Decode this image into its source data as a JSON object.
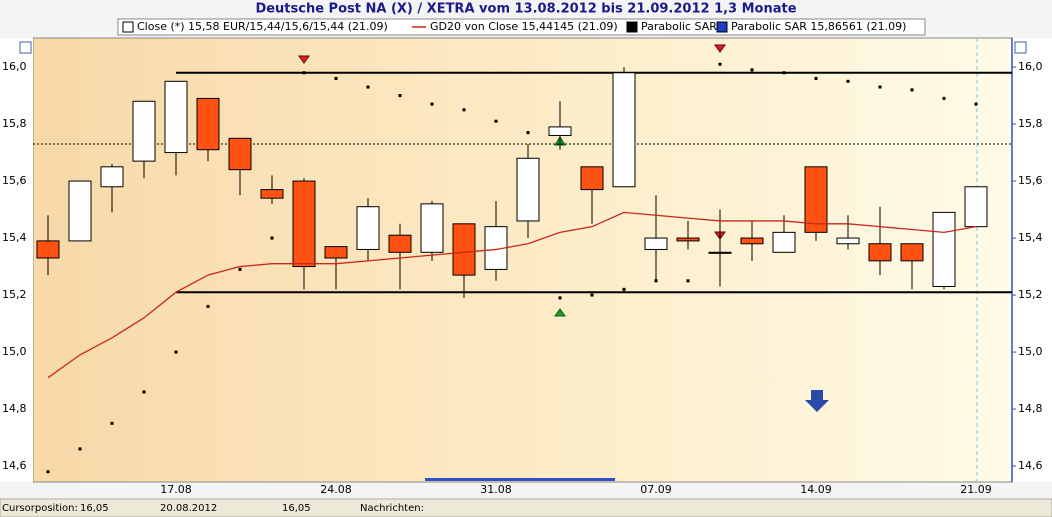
{
  "chart_data": {
    "type": "candlestick",
    "title": "Deutsche Post NA (X) / XETRA vom 13.08.2012 bis 21.09.2012 1,3 Monate",
    "categories": [
      null,
      null,
      null,
      null,
      "17.08",
      null,
      null,
      null,
      null,
      "24.08",
      null,
      null,
      null,
      null,
      "31.08",
      null,
      null,
      null,
      null,
      "07.09",
      null,
      null,
      null,
      null,
      "14.09",
      null,
      null,
      null,
      null,
      "21.09"
    ],
    "ylim": [
      14.544,
      16.102
    ],
    "yticks": [
      {
        "value": 14.6,
        "label": "14,6"
      },
      {
        "value": 14.8,
        "label": "14,8"
      },
      {
        "value": 15.0,
        "label": "15,0"
      },
      {
        "value": 15.2,
        "label": "15,2"
      },
      {
        "value": 15.4,
        "label": "15,4"
      },
      {
        "value": 15.6,
        "label": "15,6"
      },
      {
        "value": 15.8,
        "label": "15,8"
      },
      {
        "value": 16.0,
        "label": "16,0"
      }
    ],
    "series": [
      {
        "name": "Close (*) 15,58 EUR/15,44/15,6/15,44 (21.09)",
        "type": "candlestick",
        "color": "#ffffff",
        "down_color": "#ff5212",
        "open": [
          15.39,
          15.39,
          15.58,
          15.67,
          15.7,
          15.89,
          15.75,
          15.57,
          15.6,
          15.37,
          15.36,
          15.41,
          15.35,
          15.45,
          15.29,
          15.46,
          15.76,
          15.65,
          15.58,
          15.36,
          15.4,
          15.35,
          15.4,
          15.35,
          15.65,
          15.38,
          15.38,
          15.38,
          15.23,
          15.44
        ],
        "high": [
          15.48,
          15.6,
          15.66,
          15.88,
          15.95,
          15.89,
          15.75,
          15.62,
          15.61,
          15.37,
          15.54,
          15.45,
          15.53,
          15.45,
          15.53,
          15.73,
          15.88,
          15.65,
          16.0,
          15.55,
          15.46,
          15.5,
          15.46,
          15.48,
          15.65,
          15.48,
          15.51,
          15.38,
          15.49,
          15.58
        ],
        "low": [
          15.27,
          15.39,
          15.49,
          15.61,
          15.62,
          15.67,
          15.55,
          15.52,
          15.22,
          15.22,
          15.32,
          15.22,
          15.32,
          15.19,
          15.25,
          15.4,
          15.71,
          15.45,
          15.58,
          15.25,
          15.36,
          15.23,
          15.32,
          15.35,
          15.39,
          15.36,
          15.27,
          15.22,
          15.22,
          15.44
        ],
        "close": [
          15.33,
          15.6,
          15.65,
          15.88,
          15.95,
          15.71,
          15.64,
          15.54,
          15.3,
          15.33,
          15.51,
          15.35,
          15.52,
          15.27,
          15.44,
          15.68,
          15.79,
          15.57,
          15.98,
          15.4,
          15.39,
          15.35,
          15.38,
          15.42,
          15.42,
          15.4,
          15.32,
          15.32,
          15.49,
          15.58
        ]
      },
      {
        "name": "GD20 von Close 15,44145 (21.09)",
        "type": "line",
        "color": "#c8281e",
        "values": [
          14.91,
          14.99,
          15.05,
          15.12,
          15.21,
          15.27,
          15.3,
          15.31,
          15.31,
          15.31,
          15.32,
          15.33,
          15.34,
          15.35,
          15.36,
          15.38,
          15.42,
          15.44,
          15.49,
          15.48,
          15.47,
          15.46,
          15.46,
          15.46,
          15.45,
          15.45,
          15.44,
          15.43,
          15.42,
          15.44
        ]
      },
      {
        "name": "Parabolic SAR",
        "type": "scatter",
        "color": "#000000",
        "values": [
          14.58,
          14.66,
          14.75,
          14.86,
          15.0,
          15.16,
          15.29,
          15.4,
          15.98,
          15.96,
          15.93,
          15.9,
          15.87,
          15.85,
          15.81,
          15.77,
          15.19,
          15.2,
          15.22,
          15.25,
          15.25,
          16.01,
          15.99,
          15.98,
          15.96,
          15.95,
          15.93,
          15.92,
          15.89,
          15.87
        ]
      },
      {
        "name": "Parabolic SAR 15,86561 (21.09)",
        "type": "legend",
        "color": "#1e3cc8"
      }
    ],
    "reference_lines": [
      {
        "value": 15.98,
        "style": "solid"
      },
      {
        "value": 15.21,
        "style": "solid"
      },
      {
        "value": 15.73,
        "style": "dotted"
      }
    ]
  },
  "status_bar": {
    "cursor_label": "Cursorposition:",
    "cursor_value": "16,05",
    "date": "20.08.2012",
    "value": "16,05",
    "news_label": "Nachrichten:"
  }
}
